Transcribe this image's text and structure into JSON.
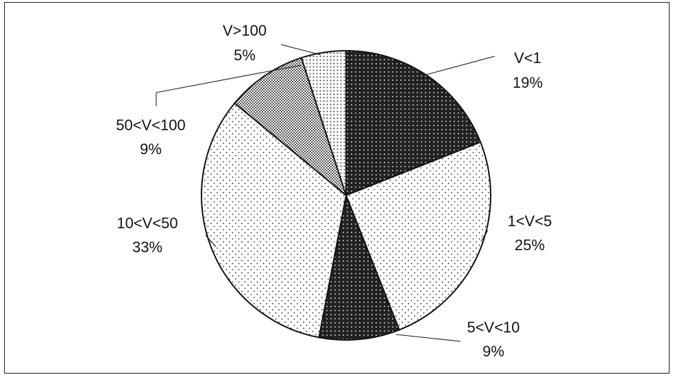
{
  "chart_data": {
    "type": "pie",
    "start": "12 o'clock",
    "direction": "clockwise",
    "slices": [
      {
        "label": "V<1",
        "pct_label": "19%",
        "value": 19,
        "fill": "dark",
        "color": "#222222"
      },
      {
        "label": "1<V<5",
        "pct_label": "25%",
        "value": 25,
        "fill": "light",
        "color": "#f4f4f4"
      },
      {
        "label": "5<V<10",
        "pct_label": "9%",
        "value": 9,
        "fill": "dark",
        "color": "#222222"
      },
      {
        "label": "10<V<50",
        "pct_label": "33%",
        "value": 33,
        "fill": "light",
        "color": "#eeeeee"
      },
      {
        "label": "50<V<100",
        "pct_label": "9%",
        "value": 9,
        "fill": "medium",
        "color": "#9a9a9a"
      },
      {
        "label": "V>100",
        "pct_label": "5%",
        "value": 5,
        "fill": "medium-light",
        "color": "#c8c8c8"
      }
    ]
  }
}
